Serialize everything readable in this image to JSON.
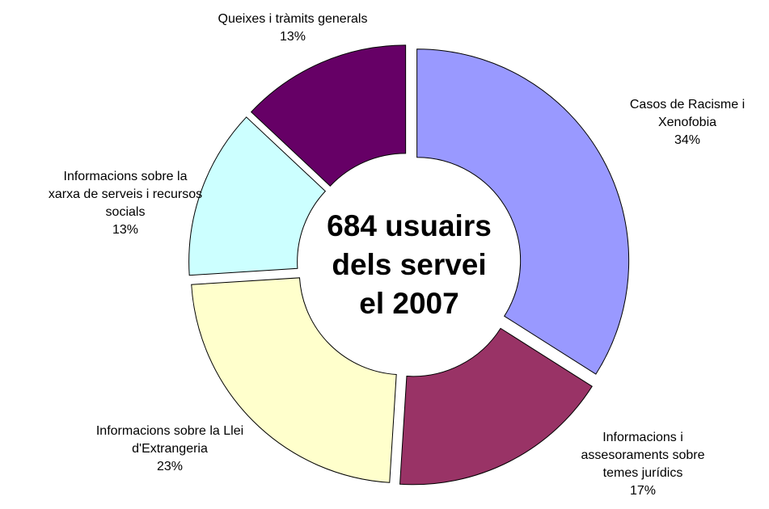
{
  "chart_data": {
    "type": "donut",
    "categories": [
      "Casos de Racisme i\nXenofobia",
      "Informacions i\nassesoraments sobre\ntemes jurídics",
      "Informacions sobre la Llei\nd'Extrangeria",
      "Informacions sobre la\nxarxa de serveis i recursos\nsocials",
      "Queixes i tràmits generals"
    ],
    "values": [
      34,
      17,
      23,
      13,
      13
    ],
    "value_labels": [
      "34%",
      "17%",
      "23%",
      "13%",
      "13%"
    ],
    "colors": [
      "#9999ff",
      "#993366",
      "#ffffcc",
      "#ccffff",
      "#660066"
    ],
    "center_text": "684 usuairs\ndels servei\nel 2007"
  }
}
